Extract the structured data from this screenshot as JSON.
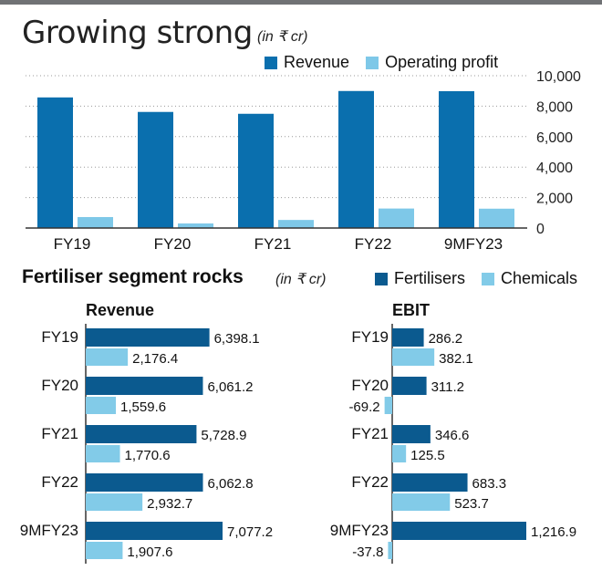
{
  "colors": {
    "primary": "#0a6fae",
    "secondary": "#7ec8e8",
    "fert": "#0b5a8f",
    "chem": "#82cbe8",
    "axis": "#333333",
    "grid": "#9a9a9a"
  },
  "header": {
    "title": "Growing strong",
    "unit": "(in ₹ cr)"
  },
  "legend1": {
    "revenue": "Revenue",
    "operating_profit": "Operating profit"
  },
  "section2": {
    "title": "Fertiliser segment rocks",
    "unit": "(in ₹ cr)"
  },
  "legend2": {
    "fertilisers": "Fertilisers",
    "chemicals": "Chemicals"
  },
  "panels": {
    "revenue": "Revenue",
    "ebit": "EBIT"
  },
  "chart_data": [
    {
      "type": "bar",
      "title": "Growing strong",
      "subtitle": "(in ₹ cr)",
      "categories": [
        "FY19",
        "FY20",
        "FY21",
        "FY22",
        "9MFY23"
      ],
      "series": [
        {
          "name": "Revenue",
          "values": [
            8574.5,
            7620.8,
            7499.5,
            8995.5,
            8984.8
          ]
        },
        {
          "name": "Operating profit",
          "values": [
            720,
            300,
            530,
            1280,
            1270
          ]
        }
      ],
      "ylim": [
        0,
        10000
      ],
      "yticks": [
        0,
        2000,
        4000,
        6000,
        8000,
        10000
      ],
      "ytick_labels": [
        "0",
        "2,000",
        "4,000",
        "6,000",
        "8,000",
        "10,000"
      ],
      "grid": true,
      "legend": "top-right"
    },
    {
      "type": "bar",
      "orientation": "horizontal",
      "title": "Revenue",
      "categories": [
        "FY19",
        "FY20",
        "FY21",
        "FY22",
        "9MFY23"
      ],
      "series": [
        {
          "name": "Fertilisers",
          "values": [
            6398.1,
            6061.2,
            5728.9,
            6062.8,
            7077.2
          ],
          "labels": [
            "6,398.1",
            "6,061.2",
            "5,728.9",
            "6,062.8",
            "7,077.2"
          ]
        },
        {
          "name": "Chemicals",
          "values": [
            2176.4,
            1559.6,
            1770.6,
            2932.7,
            1907.6
          ],
          "labels": [
            "2,176.4",
            "1,559.6",
            "1,770.6",
            "2,932.7",
            "1,907.6"
          ]
        }
      ]
    },
    {
      "type": "bar",
      "orientation": "horizontal",
      "title": "EBIT",
      "categories": [
        "FY19",
        "FY20",
        "FY21",
        "FY22",
        "9MFY23"
      ],
      "series": [
        {
          "name": "Fertilisers",
          "values": [
            286.2,
            311.2,
            346.6,
            683.3,
            1216.9
          ],
          "labels": [
            "286.2",
            "311.2",
            "346.6",
            "683.3",
            "1,216.9"
          ]
        },
        {
          "name": "Chemicals",
          "values": [
            382.1,
            -69.2,
            125.5,
            523.7,
            -37.8
          ],
          "labels": [
            "382.1",
            "-69.2",
            "125.5",
            "523.7",
            "-37.8"
          ]
        }
      ]
    }
  ]
}
